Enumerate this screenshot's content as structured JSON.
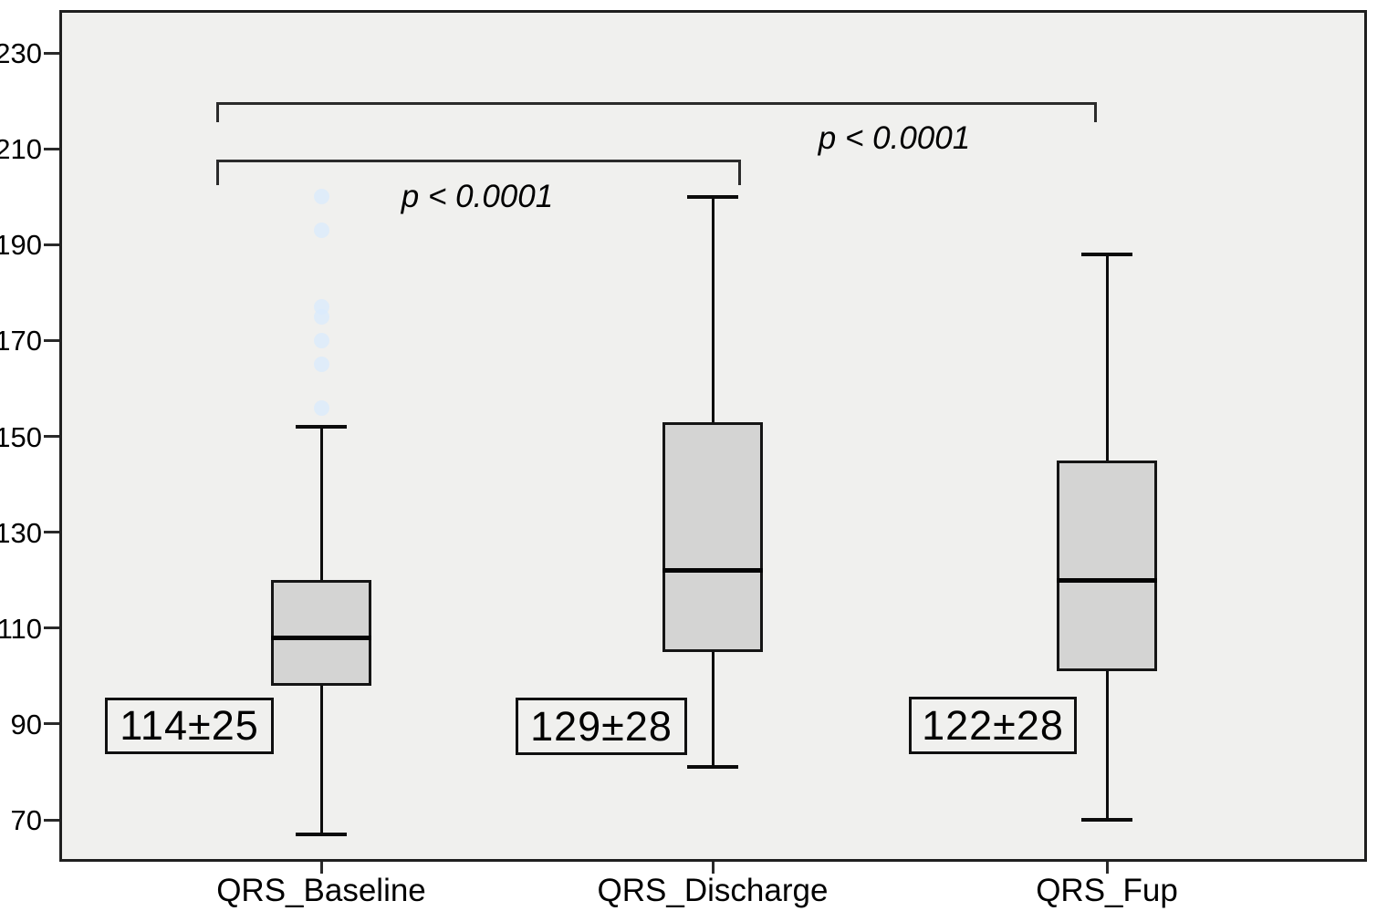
{
  "chart_data": {
    "type": "boxplot",
    "title": "",
    "xlabel": "",
    "ylabel": "",
    "grid": false,
    "ylim": [
      61,
      240
    ],
    "y_ticks": [
      230,
      210,
      190,
      170,
      150,
      130,
      110,
      90,
      70
    ],
    "categories": [
      "QRS_Baseline",
      "QRS_Discharge",
      "QRS_Fup"
    ],
    "series": [
      {
        "category": "QRS_Baseline",
        "whisker_low": 67,
        "q1": 98,
        "median": 108,
        "q3": 120,
        "whisker_high": 152,
        "outliers": [
          200,
          193,
          177,
          175,
          170,
          165,
          156
        ],
        "mean_sd_label": "114±25"
      },
      {
        "category": "QRS_Discharge",
        "whisker_low": 81,
        "q1": 105,
        "median": 122,
        "q3": 153,
        "whisker_high": 200,
        "outliers": [],
        "mean_sd_label": "129±28"
      },
      {
        "category": "QRS_Fup",
        "whisker_low": 70,
        "q1": 101,
        "median": 120,
        "q3": 145,
        "whisker_high": 188,
        "outliers": [],
        "mean_sd_label": "122±28"
      }
    ],
    "annotations": [
      {
        "type": "bracket",
        "from": "QRS_Baseline",
        "to": "QRS_Discharge",
        "label": "p < 0.0001"
      },
      {
        "type": "bracket",
        "from": "QRS_Baseline",
        "to": "QRS_Fup",
        "label": "p < 0.0001"
      }
    ]
  },
  "colors": {
    "plot_bg": "#f0f0ee",
    "frame": "#1f1f1f",
    "box_fill": "#d4d4d3",
    "box_border": "#151515",
    "median": "#040404",
    "bracket": "#2b2b2b",
    "outlier_fill": "#d9ebfc",
    "text": "#000000"
  }
}
